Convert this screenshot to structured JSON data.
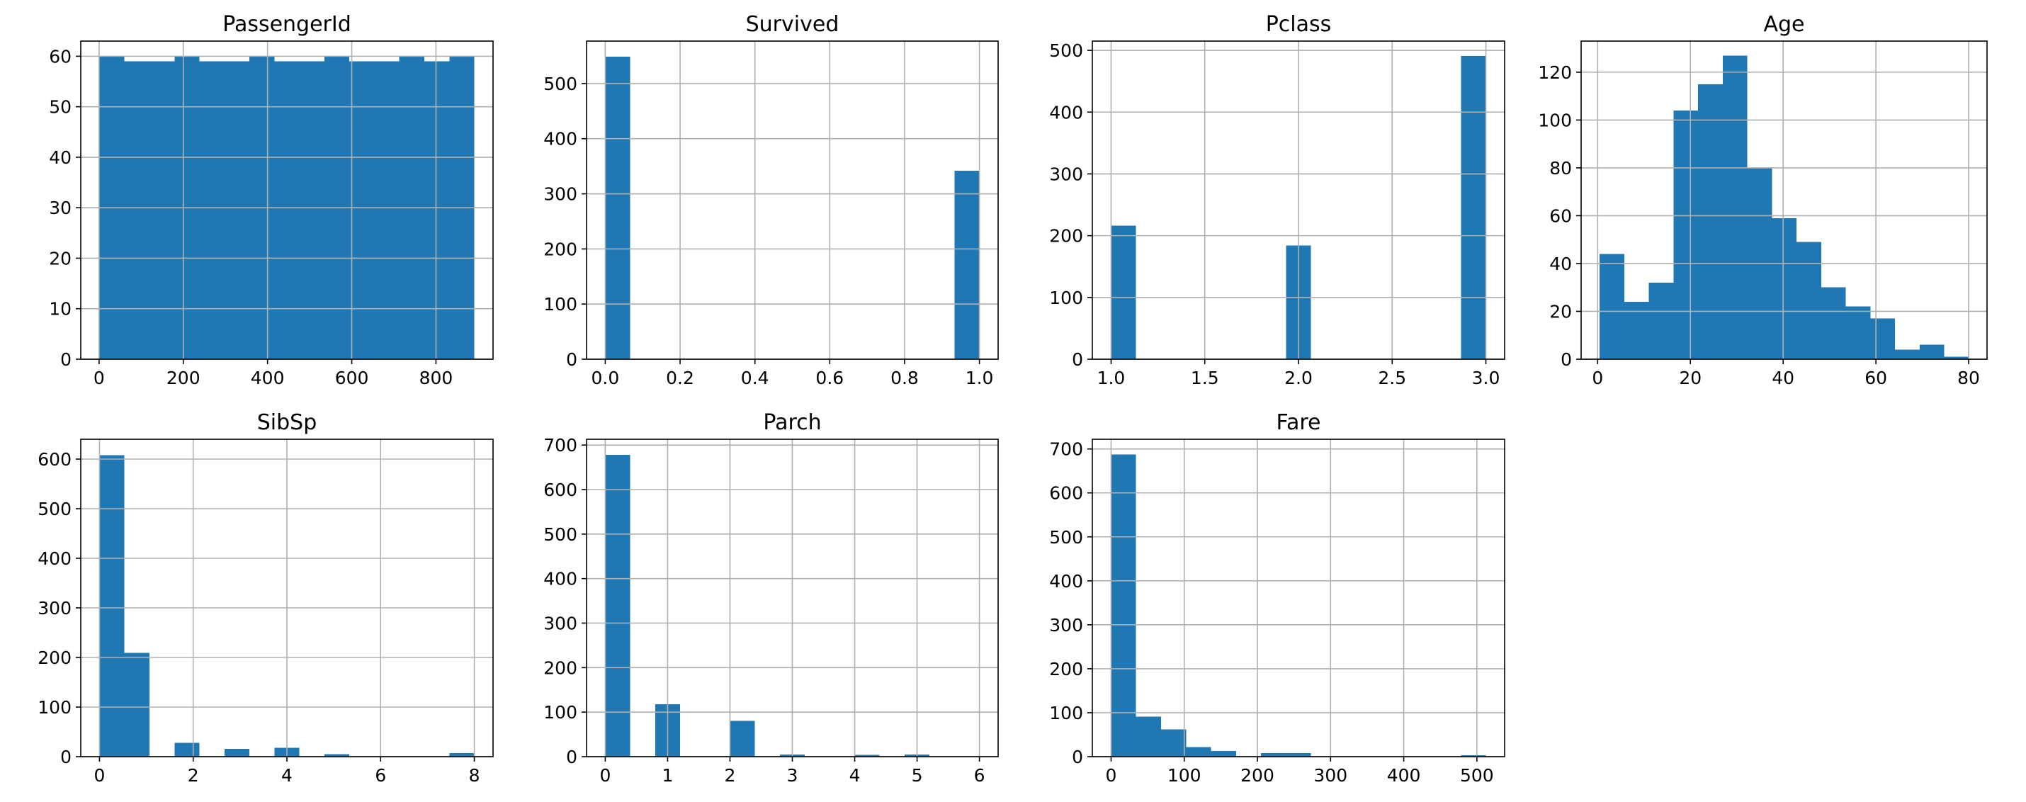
{
  "figure": {
    "bar_color": "#1f77b4",
    "grid_color": "#b0b0b0",
    "grid": true
  },
  "chart_data": [
    {
      "type": "bar",
      "title": "PassengerId",
      "xlabel": "",
      "ylabel": "",
      "xlim": [
        -43.5,
        935.5
      ],
      "ylim": [
        0,
        63
      ],
      "bins": [
        [
          1,
          60
        ],
        [
          60.33,
          59
        ],
        [
          119.67,
          59
        ],
        [
          179,
          60
        ],
        [
          238.33,
          59
        ],
        [
          297.67,
          59
        ],
        [
          357,
          60
        ],
        [
          416.33,
          59
        ],
        [
          475.67,
          59
        ],
        [
          535,
          60
        ],
        [
          594.33,
          59
        ],
        [
          653.67,
          59
        ],
        [
          713,
          60
        ],
        [
          772.33,
          59
        ],
        [
          831.67,
          60
        ],
        [
          891,
          null
        ]
      ],
      "bin_width": 59.33,
      "xticks": [
        0,
        200,
        400,
        600,
        800
      ],
      "xtick_labels": [
        "0",
        "200",
        "400",
        "600",
        "800"
      ],
      "yticks": [
        0,
        10,
        20,
        30,
        40,
        50,
        60
      ],
      "ytick_labels": [
        "0",
        "10",
        "20",
        "30",
        "40",
        "50",
        "60"
      ]
    },
    {
      "type": "bar",
      "title": "Survived",
      "xlabel": "",
      "ylabel": "",
      "xlim": [
        -0.05,
        1.05
      ],
      "ylim": [
        0,
        577
      ],
      "bins": [
        [
          0,
          549
        ],
        [
          0.9333,
          342
        ]
      ],
      "bin_width": 0.0667,
      "xticks": [
        0,
        0.2,
        0.4,
        0.6,
        0.8,
        1.0
      ],
      "xtick_labels": [
        "0.0",
        "0.2",
        "0.4",
        "0.6",
        "0.8",
        "1.0"
      ],
      "yticks": [
        0,
        100,
        200,
        300,
        400,
        500
      ],
      "ytick_labels": [
        "0",
        "100",
        "200",
        "300",
        "400",
        "500"
      ]
    },
    {
      "type": "bar",
      "title": "Pclass",
      "xlabel": "",
      "ylabel": "",
      "xlim": [
        0.9,
        3.1
      ],
      "ylim": [
        0,
        515
      ],
      "bins": [
        [
          1,
          216
        ],
        [
          1.9333,
          184
        ],
        [
          2.8667,
          491
        ]
      ],
      "bin_width": 0.1333,
      "xticks": [
        1.0,
        1.5,
        2.0,
        2.5,
        3.0
      ],
      "xtick_labels": [
        "1.0",
        "1.5",
        "2.0",
        "2.5",
        "3.0"
      ],
      "yticks": [
        0,
        100,
        200,
        300,
        400,
        500
      ],
      "ytick_labels": [
        "0",
        "100",
        "200",
        "300",
        "400",
        "500"
      ]
    },
    {
      "type": "bar",
      "title": "Age",
      "xlabel": "",
      "ylabel": "",
      "xlim": [
        -3.56,
        83.96
      ],
      "ylim": [
        0,
        133
      ],
      "bins": [
        [
          0.42,
          44
        ],
        [
          5.73,
          24
        ],
        [
          11.04,
          32
        ],
        [
          16.35,
          104
        ],
        [
          21.66,
          115
        ],
        [
          26.97,
          127
        ],
        [
          32.28,
          80
        ],
        [
          37.58,
          59
        ],
        [
          42.89,
          49
        ],
        [
          48.2,
          30
        ],
        [
          53.51,
          22
        ],
        [
          58.82,
          17
        ],
        [
          64.13,
          4
        ],
        [
          69.44,
          6
        ],
        [
          74.75,
          1
        ]
      ],
      "bin_width": 5.31,
      "xticks": [
        0,
        20,
        40,
        60,
        80
      ],
      "xtick_labels": [
        "0",
        "20",
        "40",
        "60",
        "80"
      ],
      "yticks": [
        0,
        20,
        40,
        60,
        80,
        100,
        120
      ],
      "ytick_labels": [
        "0",
        "20",
        "40",
        "60",
        "80",
        "100",
        "120"
      ]
    },
    {
      "type": "bar",
      "title": "SibSp",
      "xlabel": "",
      "ylabel": "",
      "xlim": [
        -0.4,
        8.4
      ],
      "ylim": [
        0,
        640
      ],
      "bins": [
        [
          0,
          608
        ],
        [
          0.5333,
          209
        ],
        [
          1.6,
          28
        ],
        [
          2.6667,
          16
        ],
        [
          3.7333,
          18
        ],
        [
          4.8,
          5
        ],
        [
          7.4667,
          7
        ]
      ],
      "bin_width": 0.5333,
      "xticks": [
        0,
        2,
        4,
        6,
        8
      ],
      "xtick_labels": [
        "0",
        "2",
        "4",
        "6",
        "8"
      ],
      "yticks": [
        0,
        100,
        200,
        300,
        400,
        500,
        600
      ],
      "ytick_labels": [
        "0",
        "100",
        "200",
        "300",
        "400",
        "500",
        "600"
      ]
    },
    {
      "type": "bar",
      "title": "Parch",
      "xlabel": "",
      "ylabel": "",
      "xlim": [
        -0.3,
        6.3
      ],
      "ylim": [
        0,
        713
      ],
      "bins": [
        [
          0,
          678
        ],
        [
          0.8,
          118
        ],
        [
          1.6,
          0
        ],
        [
          2,
          80
        ],
        [
          2.8,
          5
        ],
        [
          3.6,
          0
        ],
        [
          4,
          4
        ],
        [
          4.8,
          5
        ],
        [
          5.6,
          1
        ]
      ],
      "bin_width": 0.4,
      "xticks": [
        0,
        1,
        2,
        3,
        4,
        5,
        6
      ],
      "xtick_labels": [
        "0",
        "1",
        "2",
        "3",
        "4",
        "5",
        "6"
      ],
      "yticks": [
        0,
        100,
        200,
        300,
        400,
        500,
        600,
        700
      ],
      "ytick_labels": [
        "0",
        "100",
        "200",
        "300",
        "400",
        "500",
        "600",
        "700"
      ]
    },
    {
      "type": "bar",
      "title": "Fare",
      "xlabel": "",
      "ylabel": "",
      "xlim": [
        -25.6,
        537.9
      ],
      "ylim": [
        0,
        722
      ],
      "bins": [
        [
          0,
          687
        ],
        [
          34.16,
          91
        ],
        [
          68.31,
          62
        ],
        [
          102.47,
          22
        ],
        [
          136.62,
          13
        ],
        [
          170.78,
          1
        ],
        [
          204.93,
          8
        ],
        [
          239.09,
          8
        ],
        [
          375.71,
          0
        ],
        [
          478.18,
          3
        ]
      ],
      "bin_width": 34.16,
      "xticks": [
        0,
        100,
        200,
        300,
        400,
        500
      ],
      "xtick_labels": [
        "0",
        "100",
        "200",
        "300",
        "400",
        "500"
      ],
      "yticks": [
        0,
        100,
        200,
        300,
        400,
        500,
        600,
        700
      ],
      "ytick_labels": [
        "0",
        "100",
        "200",
        "300",
        "400",
        "500",
        "600",
        "700"
      ]
    }
  ]
}
